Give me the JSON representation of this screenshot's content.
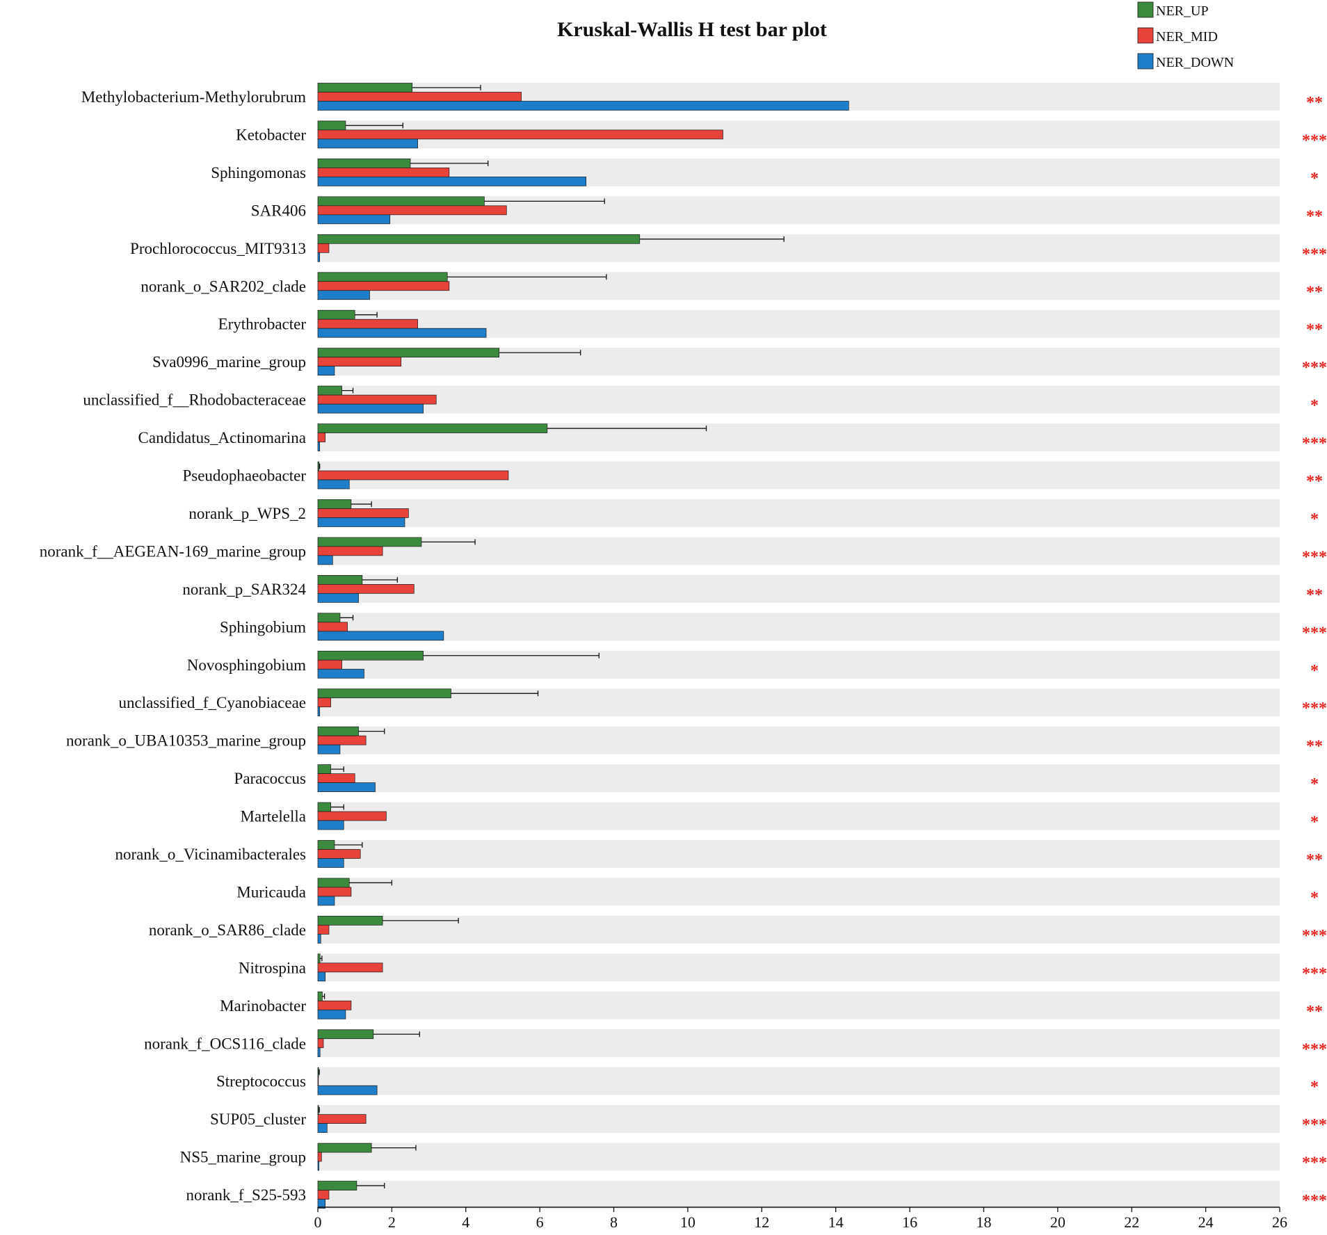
{
  "chart_data": {
    "type": "bar",
    "orientation": "horizontal",
    "title": "Kruskal-Wallis H test bar plot",
    "xlabel": "",
    "ylabel": "",
    "xlim": [
      0,
      26
    ],
    "xticks": [
      0,
      2,
      4,
      6,
      8,
      10,
      12,
      14,
      16,
      18,
      20,
      22,
      24,
      26
    ],
    "legend_position": "top-right",
    "grid": false,
    "categories": [
      "Methylobacterium-Methylorubrum",
      "Ketobacter",
      "Sphingomonas",
      "SAR406",
      "Prochlorococcus_MIT9313",
      "norank_o_SAR202_clade",
      "Erythrobacter",
      "Sva0996_marine_group",
      "unclassified_f__Rhodobacteraceae",
      "Candidatus_Actinomarina",
      "Pseudophaeobacter",
      "norank_p_WPS_2",
      "norank_f__AEGEAN-169_marine_group",
      "norank_p_SAR324",
      "Sphingobium",
      "Novosphingobium",
      "unclassified_f_Cyanobiaceae",
      "norank_o_UBA10353_marine_group",
      "Paracoccus",
      "Martelella",
      "norank_o_Vicinamibacterales",
      "Muricauda",
      "norank_o_SAR86_clade",
      "Nitrospina",
      "Marinobacter",
      "norank_f_OCS116_clade",
      "Streptococcus",
      "SUP05_cluster",
      "NS5_marine_group",
      "norank_f_S25-593"
    ],
    "series": [
      {
        "name": "NER_UP",
        "color": "#3b8a3e",
        "values": [
          2.55,
          0.75,
          2.5,
          4.5,
          8.7,
          3.5,
          1.0,
          4.9,
          0.65,
          6.2,
          0.03,
          0.9,
          2.8,
          1.2,
          0.6,
          2.85,
          3.6,
          1.1,
          0.35,
          0.35,
          0.45,
          0.85,
          1.75,
          0.06,
          0.12,
          1.5,
          0.02,
          0.02,
          1.45,
          1.05
        ],
        "errors": [
          1.85,
          1.55,
          2.1,
          3.25,
          3.9,
          4.3,
          0.6,
          2.2,
          0.3,
          4.3,
          0.02,
          0.55,
          1.45,
          0.95,
          0.35,
          4.75,
          2.35,
          0.7,
          0.35,
          0.35,
          0.75,
          1.15,
          2.05,
          0.05,
          0.06,
          1.25,
          0.02,
          0.02,
          1.2,
          0.75
        ]
      },
      {
        "name": "NER_MID",
        "color": "#e8433a",
        "values": [
          5.5,
          10.95,
          3.55,
          5.1,
          0.3,
          3.55,
          2.7,
          2.25,
          3.2,
          0.2,
          5.15,
          2.45,
          1.75,
          2.6,
          0.8,
          0.65,
          0.35,
          1.3,
          1.0,
          1.85,
          1.15,
          0.9,
          0.3,
          1.75,
          0.9,
          0.15,
          0.01,
          1.3,
          0.1,
          0.3
        ]
      },
      {
        "name": "NER_DOWN",
        "color": "#1f7ec9",
        "values": [
          14.35,
          2.7,
          7.25,
          1.95,
          0.05,
          1.4,
          4.55,
          0.45,
          2.85,
          0.05,
          0.85,
          2.35,
          0.4,
          1.1,
          3.4,
          1.25,
          0.05,
          0.6,
          1.55,
          0.7,
          0.7,
          0.45,
          0.08,
          0.2,
          0.75,
          0.06,
          1.6,
          0.25,
          0.03,
          0.2
        ]
      }
    ],
    "significance": [
      "**",
      "***",
      "*",
      "**",
      "***",
      "**",
      "**",
      "***",
      "*",
      "***",
      "**",
      "*",
      "***",
      "**",
      "***",
      "*",
      "***",
      "**",
      "*",
      "*",
      "**",
      "*",
      "***",
      "***",
      "**",
      "***",
      "*",
      "***",
      "***",
      "***"
    ]
  }
}
